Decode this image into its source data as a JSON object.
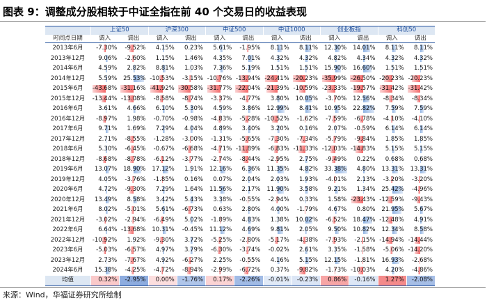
{
  "title": "图表 9：调整成分股相较于中证全指在前 40 个交易日的收益表现",
  "source": "来源：Wind，华福证券研究所绘制",
  "table": {
    "first_header": "时间点日期",
    "groups": [
      "上证50",
      "沪深300",
      "中证500",
      "中证1000",
      "创业板指",
      "科创50"
    ],
    "columns": [
      "调入",
      "调出"
    ],
    "rows": [
      {
        "date": "2013年6月",
        "values": [
          "-7.30%",
          "-9.52%",
          "4.15%",
          "0.23%",
          "5.61%",
          "-1.95%",
          "8.11%",
          "8.11%",
          "12.30%",
          "14.01%",
          "8.11%",
          "8.11%"
        ]
      },
      {
        "date": "2013年12月",
        "values": [
          "9.06%",
          "-2.60%",
          "1.15%",
          "1.46%",
          "4.35%",
          "7.01%",
          "4.32%",
          "4.32%",
          "4.82%",
          "4.34%",
          "4.32%",
          "4.32%"
        ]
      },
      {
        "date": "2014年6月",
        "values": [
          "4.59%",
          "2.82%",
          "8.81%",
          "1.03%",
          "7.36%",
          "5.19%",
          "1.51%",
          "1.51%",
          "15.90%",
          "16.60%",
          "1.51%",
          "1.51%"
        ]
      },
      {
        "date": "2014年12月",
        "values": [
          "5.59%",
          "25.53%",
          "-10.53%",
          "-3.15%",
          "-10.76%",
          "-13.94%",
          "-24.41%",
          "-20.23%",
          "-35.99%",
          "-26.50%",
          "-20.23%",
          "-20.23%"
        ]
      },
      {
        "date": "2015年6月",
        "values": [
          "-43.68%",
          "-31.16%",
          "-41.92%",
          "-30.58%",
          "-31.77%",
          "-22.04%",
          "-21.39%",
          "-10.59%",
          "-23.33%",
          "-19.57%",
          "-31.42%",
          "-31.42%"
        ]
      },
      {
        "date": "2015年12月",
        "values": [
          "-13.44%",
          "-13.08%",
          "-8.58%",
          "-8.74%",
          "-3.37%",
          "-4.77%",
          "3.80%",
          "10.05%",
          "-3.70%",
          "12.56%",
          "-8.34%",
          "-8.34%"
        ]
      },
      {
        "date": "2016年6月",
        "values": [
          "3.61%",
          "4.66%",
          "6.10%",
          "5.30%",
          "4.59%",
          "3.86%",
          "12.99%",
          "8.41%",
          "10.95%",
          "22.82%",
          "7.59%",
          "7.59%"
        ]
      },
      {
        "date": "2016年12月",
        "values": [
          "-8.97%",
          "1.98%",
          "-0.70%",
          "-0.98%",
          "-4.83%",
          "-5.28%",
          "-10.52%",
          "-1.62%",
          "-7.59%",
          "-6.78%",
          "-4.10%",
          "-4.10%"
        ]
      },
      {
        "date": "2017年6月",
        "values": [
          "9.71%",
          "1.69%",
          "7.29%",
          "4.04%",
          "4.89%",
          "3.40%",
          "3.20%",
          "0.16%",
          "2.07%",
          "-0.59%",
          "6.14%",
          "6.14%"
        ]
      },
      {
        "date": "2017年12月",
        "values": [
          "2.71%",
          "-8.55%",
          "-1.28%",
          "-3.00%",
          "-1.31%",
          "-5.65%",
          "-7.30%",
          "-7.34%",
          "-5.79%",
          "-9.84%",
          "1.85%",
          "1.85%"
        ]
      },
      {
        "date": "2018年6月",
        "values": [
          "5.30%",
          "-6.45%",
          "-0.67%",
          "-6.68%",
          "-4.71%",
          "-11.89%",
          "-6.83%",
          "-11.33%",
          "-12.03%",
          "-14.83%",
          "5.15%",
          "5.15%"
        ]
      },
      {
        "date": "2018年12月",
        "values": [
          "-8.68%",
          "-8.78%",
          "-6.12%",
          "-3.77%",
          "-2.74%",
          "-8.44%",
          "-2.95%",
          "2.75%",
          "-9.49%",
          "0.22%",
          "0.68%",
          "0.68%"
        ]
      },
      {
        "date": "2019年6月",
        "values": [
          "13.07%",
          "18.90%",
          "17.12%",
          "1.91%",
          "12.16%",
          "6.36%",
          "11.35%",
          "4.82%",
          "33.38%",
          "4.80%",
          "13.31%",
          "13.31%"
        ]
      },
      {
        "date": "2019年12月",
        "values": [
          "4.05%",
          "-3.76%",
          "-1.85%",
          "0.16%",
          "0.07%",
          "2.04%",
          "2.03%",
          "1.93%",
          "-4.01%",
          "2.13%",
          "-3.20%",
          "-3.20%"
        ]
      },
      {
        "date": "2020年6月",
        "values": [
          "4.72%",
          "-9.30%",
          "7.29%",
          "1.64%",
          "11.56%",
          "2.17%",
          "11.90%",
          "3.58%",
          "9.21%",
          "1.34%",
          "25.42%",
          "-4.96%"
        ]
      },
      {
        "date": "2020年12月",
        "values": [
          "13.49%",
          "8.58%",
          "3.42%",
          "5.43%",
          "3.38%",
          "-0.55%",
          "-2.94%",
          "0.33%",
          "1.58%",
          "-23.43%",
          "-12.59%",
          "-9.43%"
        ]
      },
      {
        "date": "2021年6月",
        "values": [
          "8.02%",
          "-5.01%",
          "5.61%",
          "-6.73%",
          "0.63%",
          "2.80%",
          "4.00%",
          "-1.79%",
          "4.67%",
          "0.80%",
          "21.95%",
          "5.67%"
        ]
      },
      {
        "date": "2021年12月",
        "values": [
          "-3.02%",
          "-2.94%",
          "-6.49%",
          "5.02%",
          "-1.89%",
          "4.83%",
          "1.38%",
          "10.02%",
          "-6.52%",
          "18.47%",
          "-12.48%",
          "4.91%"
        ]
      },
      {
        "date": "2022年6月",
        "values": [
          "6.64%",
          "-13.68%",
          "10.31%",
          "-0.45%",
          "11.12%",
          "4.69%",
          "9.81%",
          "2.05%",
          "9.50%",
          "10.82%",
          "12.34%",
          "8.58%"
        ]
      },
      {
        "date": "2022年12月",
        "values": [
          "-10.92%",
          "1.92%",
          "-9.30%",
          "3.72%",
          "-5.25%",
          "-2.80%",
          "-5.17%",
          "-4.38%",
          "-7.93%",
          "-2.15%",
          "-14.94%",
          "-14.44%"
        ]
      },
      {
        "date": "2023年6月",
        "values": [
          "-5.03%",
          "-6.57%",
          "4.97%",
          "3.79%",
          "-6.30%",
          "-3.74%",
          "-0.02%",
          "2.61%",
          "3.35%",
          "-1.58%",
          "-5.06%",
          "-14.20%"
        ]
      },
      {
        "date": "2023年12月",
        "values": [
          "2.73%",
          "-7.67%",
          "4.92%",
          "-6.27%",
          "2.25%",
          "-0.55%",
          "4.16%",
          "5.15%",
          "12.15%",
          "-1.81%",
          "16.93%",
          "-2.68%"
        ]
      },
      {
        "date": "2024年6月",
        "values": [
          "15.38%",
          "-4.25%",
          "-4.72%",
          "-8.94%",
          "-2.99%",
          "-6.72%",
          "0.37%",
          "-9.82%",
          "-1.73%",
          "-10.03%",
          "4.20%",
          "-4.86%"
        ]
      }
    ],
    "average": {
      "label": "均值",
      "values": [
        "0.32%",
        "-2.95%",
        "0.00%",
        "-1.76%",
        "0.17%",
        "-2.26%",
        "-0.01%",
        "-0.23%",
        "0.86%",
        "-0.16%",
        "1.27%",
        "-2.08%"
      ]
    }
  }
}
